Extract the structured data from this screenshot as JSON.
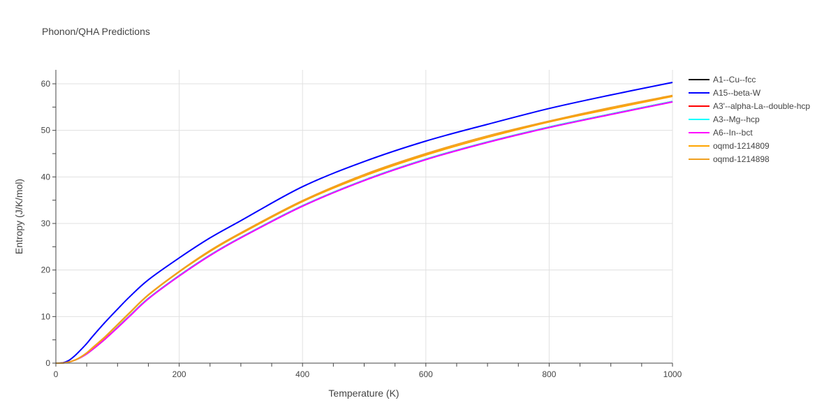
{
  "chart_data": {
    "type": "line",
    "title": "Phonon/QHA Predictions",
    "xlabel": "Temperature (K)",
    "ylabel": "Entropy (J/K/mol)",
    "xlim": [
      0,
      1000
    ],
    "ylim": [
      0,
      63
    ],
    "x_ticks": [
      0,
      200,
      400,
      600,
      800,
      1000
    ],
    "y_ticks": [
      0,
      10,
      20,
      30,
      40,
      50,
      60
    ],
    "grid": true,
    "legend_position": "right",
    "x": [
      0,
      10,
      20,
      30,
      40,
      50,
      60,
      80,
      100,
      120,
      150,
      200,
      250,
      300,
      400,
      500,
      600,
      700,
      800,
      900,
      1000
    ],
    "series": [
      {
        "name": "A1--Cu--fcc",
        "color": "#000000",
        "values": [
          0,
          0.02,
          0.2,
          0.6,
          1.2,
          2.0,
          3.0,
          5.2,
          7.7,
          10.2,
          13.9,
          18.8,
          23.2,
          27.0,
          33.8,
          39.3,
          43.8,
          47.5,
          50.7,
          53.5,
          56.2
        ]
      },
      {
        "name": "A15--beta-W",
        "color": "#0000ff",
        "values": [
          0,
          0.05,
          0.5,
          1.5,
          2.8,
          4.2,
          5.8,
          8.8,
          11.6,
          14.3,
          17.9,
          22.6,
          26.9,
          30.6,
          37.9,
          43.3,
          47.7,
          51.3,
          54.7,
          57.6,
          60.3
        ]
      },
      {
        "name": "A3'--alpha-La--double-hcp",
        "color": "#ff0000",
        "values": [
          0,
          0.02,
          0.2,
          0.6,
          1.2,
          2.0,
          3.0,
          5.2,
          7.7,
          10.2,
          13.9,
          18.8,
          23.2,
          27.0,
          33.8,
          39.3,
          43.8,
          47.5,
          50.7,
          53.5,
          56.2
        ]
      },
      {
        "name": "A3--Mg--hcp",
        "color": "#00ffff",
        "values": [
          0,
          0.02,
          0.2,
          0.6,
          1.2,
          2.0,
          3.0,
          5.2,
          7.7,
          10.2,
          13.9,
          18.8,
          23.2,
          27.0,
          33.8,
          39.3,
          43.8,
          47.5,
          50.7,
          53.5,
          56.2
        ]
      },
      {
        "name": "A6--In--bct",
        "color": "#ff00ff",
        "values": [
          0,
          0.02,
          0.2,
          0.6,
          1.2,
          2.0,
          3.0,
          5.2,
          7.6,
          10.1,
          13.8,
          18.7,
          23.1,
          26.9,
          33.7,
          39.2,
          43.7,
          47.4,
          50.6,
          53.4,
          56.1
        ]
      },
      {
        "name": "oqmd-1214809",
        "color": "#ffa500",
        "values": [
          0,
          0.02,
          0.2,
          0.6,
          1.3,
          2.2,
          3.3,
          5.6,
          8.2,
          10.8,
          14.6,
          19.6,
          24.0,
          27.8,
          34.7,
          40.2,
          44.7,
          48.5,
          51.8,
          54.6,
          57.3
        ]
      },
      {
        "name": "oqmd-1214898",
        "color": "#f0a020",
        "values": [
          0,
          0.02,
          0.2,
          0.6,
          1.3,
          2.2,
          3.4,
          5.7,
          8.3,
          10.9,
          14.7,
          19.7,
          24.2,
          28.0,
          34.9,
          40.5,
          45.0,
          48.8,
          52.0,
          54.9,
          57.5
        ]
      }
    ]
  }
}
